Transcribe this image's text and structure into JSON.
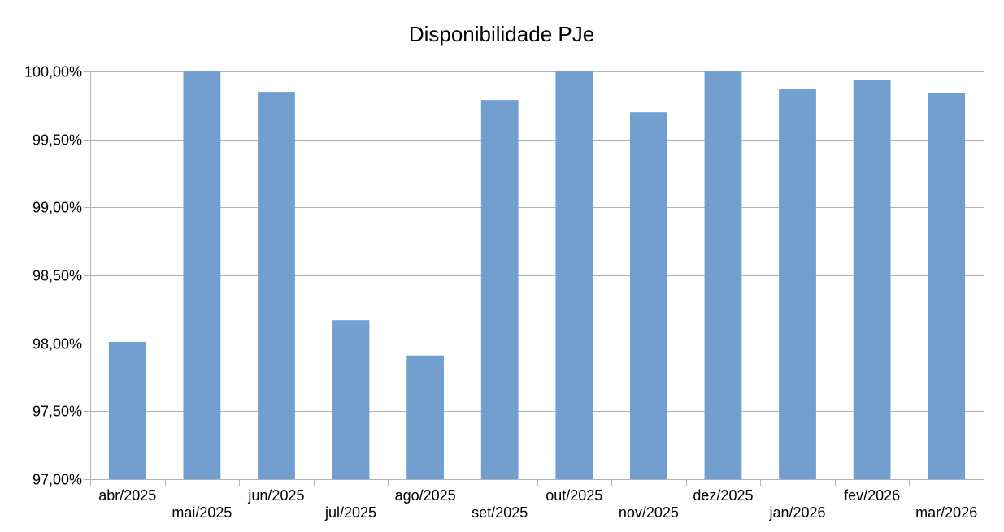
{
  "chart_data": {
    "type": "bar",
    "title": "Disponibilidade PJe",
    "xlabel": "",
    "ylabel": "",
    "categories": [
      "abr/2025",
      "mai/2025",
      "jun/2025",
      "jul/2025",
      "ago/2025",
      "set/2025",
      "out/2025",
      "nov/2025",
      "dez/2025",
      "jan/2026",
      "fev/2026",
      "mar/2026"
    ],
    "values": [
      98.01,
      100.0,
      99.85,
      98.17,
      97.91,
      99.79,
      100.0,
      99.7,
      100.0,
      99.87,
      99.94,
      99.84
    ],
    "ylim": [
      97.0,
      100.0
    ],
    "yticks": [
      97.0,
      97.5,
      98.0,
      98.5,
      99.0,
      99.5,
      100.0
    ],
    "ytick_labels": [
      "97,00%",
      "97,50%",
      "98,00%",
      "98,50%",
      "99,00%",
      "99,50%",
      "100,00%"
    ],
    "grid": true,
    "legend": "none",
    "colors": {
      "bar": "#729fcf",
      "grid": "#b3b3b3",
      "axis": "#b3b3b3",
      "text": "#000000"
    }
  }
}
